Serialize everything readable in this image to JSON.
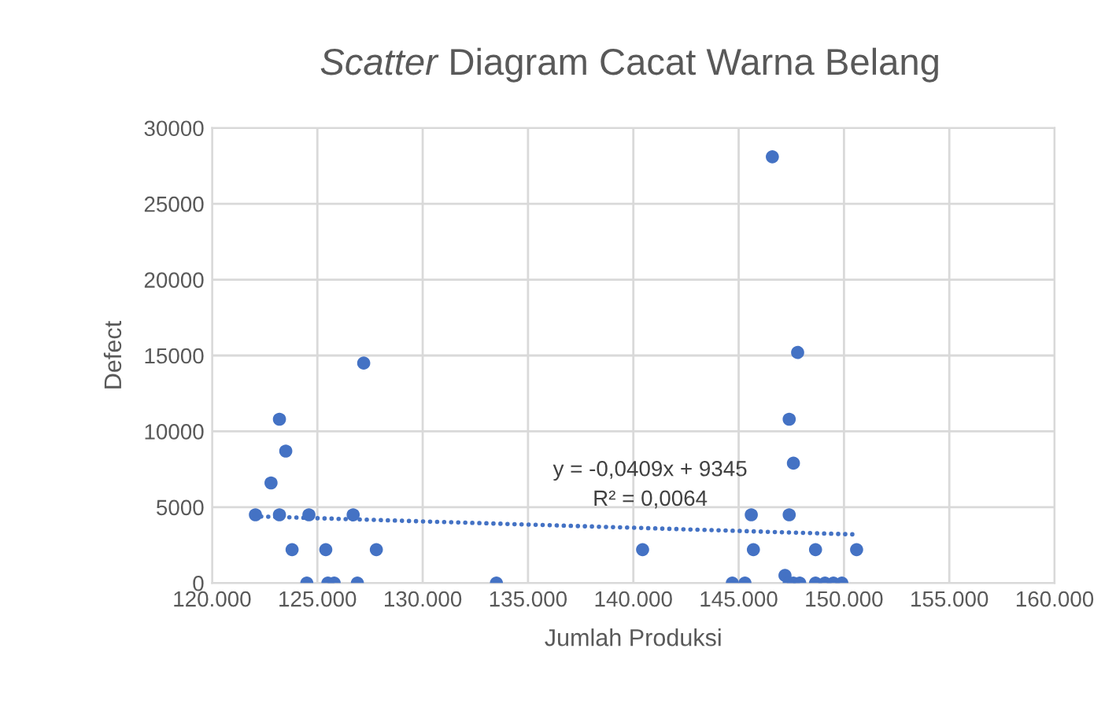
{
  "chart_data": {
    "type": "scatter",
    "title": "Scatter Diagram Cacat Warna Belang",
    "xlabel": "Jumlah Produksi",
    "ylabel": "Defect",
    "series": [
      {
        "color": "#4472c4",
        "marker": "circle",
        "x": [
          122060,
          123200,
          124600,
          126700,
          122800,
          123200,
          123500,
          123800,
          125400,
          127800,
          124500,
          125500,
          125800,
          126900,
          127200,
          133500,
          140440,
          146600,
          147800,
          147400,
          147600,
          145600,
          147400,
          145700,
          148650,
          150600,
          147200,
          144700,
          145300,
          147400,
          147600,
          147900,
          148650,
          149100,
          149500,
          149900
        ],
        "values": [
          4500,
          4500,
          4500,
          4500,
          6600,
          10800,
          8700,
          2200,
          2200,
          2200,
          0,
          0,
          0,
          0,
          14500,
          0,
          2200,
          28100,
          15200,
          10800,
          7900,
          4500,
          4500,
          2200,
          2200,
          2200,
          500,
          0,
          0,
          0,
          0,
          0,
          0,
          0,
          0,
          0
        ]
      },
      {
        "type": "line",
        "color": "#4472c4",
        "line_style": "dotted",
        "marker": "none",
        "x": [
          122000,
          150600
        ],
        "values": [
          4400,
          3200
        ]
      }
    ],
    "annotations": [
      "y = -0,0409x + 9345",
      "R² = 0,0064"
    ],
    "xlim": [
      120000,
      160000
    ],
    "xticks": [
      {
        "value": 120000,
        "label": "120.000"
      },
      {
        "value": 125000,
        "label": "125.000"
      },
      {
        "value": 130000,
        "label": "130.000"
      },
      {
        "value": 135000,
        "label": "135.000"
      },
      {
        "value": 140000,
        "label": "140.000"
      },
      {
        "value": 145000,
        "label": "145.000"
      },
      {
        "value": 150000,
        "label": "150.000"
      },
      {
        "value": 155000,
        "label": "155.000"
      },
      {
        "value": 160000,
        "label": "160.000"
      }
    ],
    "ylim": [
      0,
      30000
    ],
    "yticks": [
      0,
      5000,
      10000,
      15000,
      20000,
      25000,
      30000
    ],
    "grid": true,
    "legend": false
  }
}
